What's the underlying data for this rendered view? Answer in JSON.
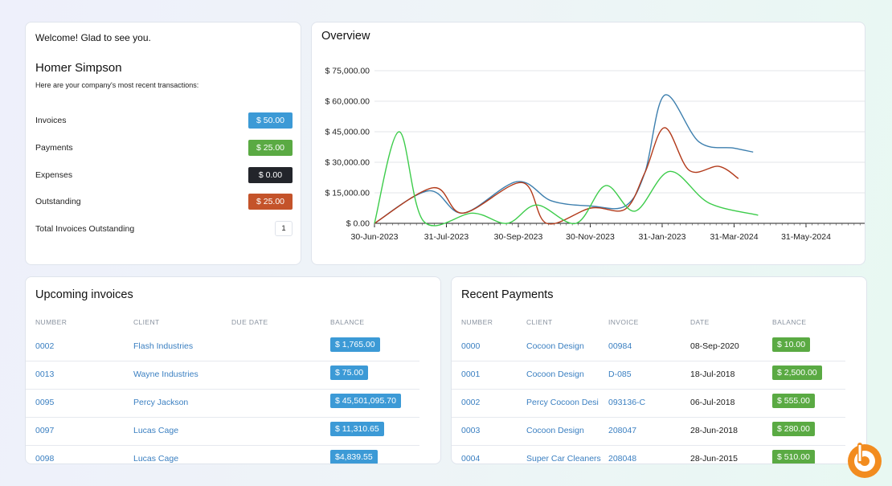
{
  "welcome": {
    "greeting": "Welcome! Glad to see you.",
    "user_name": "Homer Simpson",
    "subtext": "Here are your company's most recent transactions:",
    "stats": [
      {
        "label": "Invoices",
        "value": "$ 50.00",
        "color": "#3c9ad6"
      },
      {
        "label": "Payments",
        "value": "$ 25.00",
        "color": "#5aaa43"
      },
      {
        "label": "Expenses",
        "value": "$ 0.00",
        "color": "#23252b"
      },
      {
        "label": "Outstanding",
        "value": "$ 25.00",
        "color": "#c4532a"
      }
    ],
    "total_label": "Total Invoices Outstanding",
    "total_value": "1"
  },
  "overview": {
    "title": "Overview",
    "chart_data": {
      "type": "line",
      "title": "Overview",
      "xlabel": "",
      "ylabel": "",
      "ylim": [
        0,
        75000
      ],
      "grid": true,
      "legend": "none",
      "y_ticks": [
        "$ 75,000.00",
        "$ 60,000.00",
        "$ 45,000.00",
        "$ 30,000.00",
        "$ 15,000.00",
        "$ 0.00"
      ],
      "x_ticks": [
        "30-Jun-2023",
        "31-Jul-2023",
        "30-Sep-2023",
        "30-Nov-2023",
        "31-Jan-2023",
        "31-Mar-2024",
        "31-May-2024"
      ],
      "series": [
        {
          "color": "#3d7fae",
          "points": [
            [
              0.0,
              0
            ],
            [
              0.11,
              16000
            ],
            [
              0.18,
              5000
            ],
            [
              0.29,
              20500
            ],
            [
              0.36,
              11000
            ],
            [
              0.44,
              8500
            ],
            [
              0.51,
              8500
            ],
            [
              0.55,
              25000
            ],
            [
              0.59,
              63000
            ],
            [
              0.66,
              40000
            ],
            [
              0.73,
              37000
            ],
            [
              0.77,
              35000
            ]
          ]
        },
        {
          "color": "#b23a1a",
          "points": [
            [
              0.0,
              0
            ],
            [
              0.12,
              17500
            ],
            [
              0.18,
              5000
            ],
            [
              0.3,
              20000
            ],
            [
              0.35,
              0
            ],
            [
              0.44,
              7500
            ],
            [
              0.51,
              7000
            ],
            [
              0.55,
              25000
            ],
            [
              0.59,
              47000
            ],
            [
              0.64,
              26000
            ],
            [
              0.7,
              28000
            ],
            [
              0.74,
              22000
            ]
          ]
        },
        {
          "color": "#3dcc4b",
          "points": [
            [
              0.0,
              0
            ],
            [
              0.05,
              45000
            ],
            [
              0.1,
              1000
            ],
            [
              0.2,
              5000
            ],
            [
              0.27,
              0
            ],
            [
              0.33,
              9000
            ],
            [
              0.41,
              0
            ],
            [
              0.47,
              18500
            ],
            [
              0.53,
              6000
            ],
            [
              0.6,
              25500
            ],
            [
              0.68,
              10000
            ],
            [
              0.78,
              4000
            ]
          ]
        }
      ]
    }
  },
  "upcoming": {
    "title": "Upcoming invoices",
    "headers": [
      "NUMBER",
      "CLIENT",
      "DUE DATE",
      "BALANCE"
    ],
    "rows": [
      {
        "number": "0002",
        "client": "Flash Industries",
        "due_date": "",
        "balance": "$ 1,765.00"
      },
      {
        "number": "0013",
        "client": "Wayne Industries",
        "due_date": "",
        "balance": "$ 75.00"
      },
      {
        "number": "0095",
        "client": "Percy Jackson",
        "due_date": "",
        "balance": "$ 45,501,095.70"
      },
      {
        "number": "0097",
        "client": "Lucas Cage",
        "due_date": "",
        "balance": "$ 11,310.65"
      },
      {
        "number": "0098",
        "client": "Lucas Cage",
        "due_date": "",
        "balance": "$4,839.55"
      }
    ]
  },
  "payments": {
    "title": "Recent Payments",
    "headers": [
      "NUMBER",
      "CLIENT",
      "INVOICE",
      "DATE",
      "BALANCE"
    ],
    "rows": [
      {
        "number": "0000",
        "client": "Cocoon Design",
        "invoice": "00984",
        "date": "08-Sep-2020",
        "balance": "$ 10.00"
      },
      {
        "number": "0001",
        "client": "Cocoon Design",
        "invoice": "D-085",
        "date": "18-Jul-2018",
        "balance": "$ 2,500.00"
      },
      {
        "number": "0002",
        "client": "Percy Cocoon Desi",
        "invoice": "093136-C",
        "date": "06-Jul-2018",
        "balance": "$ 555.00"
      },
      {
        "number": "0003",
        "client": "Cocoon Design",
        "invoice": "208047",
        "date": "28-Jun-2018",
        "balance": "$ 280.00"
      },
      {
        "number": "0004",
        "client": "Super Car Cleaners",
        "invoice": "208048",
        "date": "28-Jun-2015",
        "balance": "$ 510.00"
      }
    ]
  },
  "brand": {
    "icon": "brand-logo-icon",
    "color": "#f28c1f"
  }
}
